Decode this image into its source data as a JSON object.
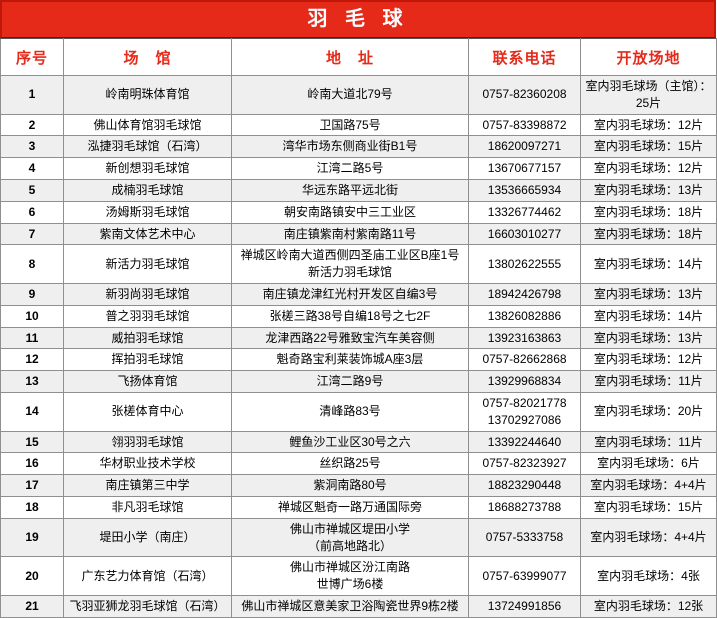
{
  "title": "羽 毛 球",
  "colors": {
    "header_background": "#e52a1a",
    "header_text": "#ffffff",
    "column_header_text": "#e52a1a",
    "stripe_gray": "#efefef",
    "grid_border": "#8f8f8f"
  },
  "columns": [
    "序号",
    "场　馆",
    "地　址",
    "联系电话",
    "开放场地"
  ],
  "rows": [
    {
      "no": "1",
      "venue": "岭南明珠体育馆",
      "address": "岭南大道北79号",
      "phone": "0757-82360208",
      "courts": "室内羽毛球场（主馆）：25片"
    },
    {
      "no": "2",
      "venue": "佛山体育馆羽毛球馆",
      "address": "卫国路75号",
      "phone": "0757-83398872",
      "courts": "室内羽毛球场：12片"
    },
    {
      "no": "3",
      "venue": "泓捷羽毛球馆（石湾）",
      "address": "湾华市场东侧商业街B1号",
      "phone": "18620097271",
      "courts": "室内羽毛球场：15片"
    },
    {
      "no": "4",
      "venue": "新创想羽毛球馆",
      "address": "江湾二路5号",
      "phone": "13670677157",
      "courts": "室内羽毛球场：12片"
    },
    {
      "no": "5",
      "venue": "成楠羽毛球馆",
      "address": "华远东路平远北街",
      "phone": "13536665934",
      "courts": "室内羽毛球场：13片"
    },
    {
      "no": "6",
      "venue": "汤姆斯羽毛球馆",
      "address": "朝安南路镇安中三工业区",
      "phone": "13326774462",
      "courts": "室内羽毛球场：18片"
    },
    {
      "no": "7",
      "venue": "紫南文体艺术中心",
      "address": "南庄镇紫南村紫南路11号",
      "phone": "16603010277",
      "courts": "室内羽毛球场：18片"
    },
    {
      "no": "8",
      "venue": "新活力羽毛球馆",
      "address": "禅城区岭南大道西侧四圣庙工业区B座1号新活力羽毛球馆",
      "phone": "13802622555",
      "courts": "室内羽毛球场：14片"
    },
    {
      "no": "9",
      "venue": "新羽尚羽毛球馆",
      "address": "南庄镇龙津红光村开发区自编3号",
      "phone": "18942426798",
      "courts": "室内羽毛球场：13片"
    },
    {
      "no": "10",
      "venue": "普之羽羽毛球馆",
      "address": "张槎三路38号自编18号之七2F",
      "phone": "13826082886",
      "courts": "室内羽毛球场：14片"
    },
    {
      "no": "11",
      "venue": "威拍羽毛球馆",
      "address": "龙津西路22号雅致宝汽车美容侧",
      "phone": "13923163863",
      "courts": "室内羽毛球场：13片"
    },
    {
      "no": "12",
      "venue": "挥拍羽毛球馆",
      "address": "魁奇路宝利莱装饰城A座3层",
      "phone": "0757-82662868",
      "courts": "室内羽毛球场：12片"
    },
    {
      "no": "13",
      "venue": "飞扬体育馆",
      "address": "江湾二路9号",
      "phone": "13929968834",
      "courts": "室内羽毛球场：11片"
    },
    {
      "no": "14",
      "venue": "张槎体育中心",
      "address": "清峰路83号",
      "phone": "0757-82021778\n13702927086",
      "courts": "室内羽毛球场：20片"
    },
    {
      "no": "15",
      "venue": "翎羽羽毛球馆",
      "address": "鲤鱼沙工业区30号之六",
      "phone": "13392244640",
      "courts": "室内羽毛球场：11片"
    },
    {
      "no": "16",
      "venue": "华材职业技术学校",
      "address": "丝织路25号",
      "phone": "0757-82323927",
      "courts": "室内羽毛球场：6片"
    },
    {
      "no": "17",
      "venue": "南庄镇第三中学",
      "address": "紫洞南路80号",
      "phone": "18823290448",
      "courts": "室内羽毛球场：4+4片"
    },
    {
      "no": "18",
      "venue": "非凡羽毛球馆",
      "address": "禅城区魁奇一路万通国际旁",
      "phone": "18688273788",
      "courts": "室内羽毛球场：15片"
    },
    {
      "no": "19",
      "venue": "堤田小学（南庄）",
      "address": "佛山市禅城区堤田小学\n（前高地路北）",
      "phone": "0757-5333758",
      "courts": "室内羽毛球场：4+4片"
    },
    {
      "no": "20",
      "venue": "广东艺力体育馆（石湾）",
      "address": "佛山市禅城区汾江南路\n世博广场6楼",
      "phone": "0757-63999077",
      "courts": "室内羽毛球场：4张"
    },
    {
      "no": "21",
      "venue": "飞羽亚狮龙羽毛球馆（石湾）",
      "address": "佛山市禅城区意美家卫浴陶瓷世界9栋2楼",
      "phone": "13724991856",
      "courts": "室内羽毛球场：12张"
    }
  ]
}
